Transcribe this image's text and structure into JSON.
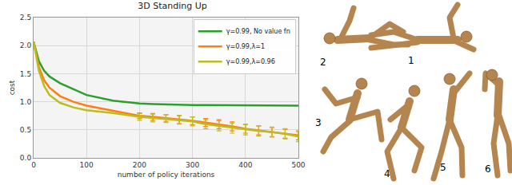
{
  "chart_data": {
    "type": "line",
    "title": "3D Standing Up",
    "x_label": "number of policy iterations",
    "y_label": "cost",
    "x": [
      0,
      10,
      20,
      30,
      50,
      75,
      100,
      150,
      200,
      225,
      250,
      275,
      300,
      325,
      350,
      375,
      400,
      425,
      450,
      475,
      500
    ],
    "series": [
      {
        "name": "γ=0.99, No value fn",
        "color": "#2ca02c",
        "line_style": "solid",
        "values": [
          2.07,
          1.72,
          1.55,
          1.45,
          1.33,
          1.22,
          1.12,
          1.02,
          0.97,
          0.96,
          0.95,
          0.95,
          0.94,
          0.94,
          0.94,
          0.93,
          0.93,
          0.93,
          0.93,
          0.93,
          0.93
        ]
      },
      {
        "name": "γ=0.99,λ=1",
        "color": "#ff7f0e",
        "line_style": "solid",
        "values": [
          2.07,
          1.62,
          1.38,
          1.25,
          1.1,
          1.0,
          0.93,
          0.84,
          0.75,
          0.73,
          0.71,
          0.68,
          0.66,
          0.63,
          0.6,
          0.56,
          0.52,
          0.49,
          0.46,
          0.43,
          0.4
        ],
        "error": [
          null,
          null,
          null,
          null,
          null,
          null,
          null,
          null,
          0.05,
          0.06,
          0.06,
          0.07,
          0.07,
          0.07,
          0.08,
          0.08,
          0.08,
          0.08,
          0.08,
          0.08,
          0.08
        ]
      },
      {
        "name": "γ=0.99,λ=0.96",
        "color": "#bcbd22",
        "line_style": "solid",
        "values": [
          2.07,
          1.55,
          1.28,
          1.12,
          0.98,
          0.9,
          0.85,
          0.8,
          0.73,
          0.71,
          0.7,
          0.68,
          0.65,
          0.6,
          0.57,
          0.53,
          0.5,
          0.48,
          0.46,
          0.43,
          0.38
        ],
        "error": [
          null,
          null,
          null,
          null,
          null,
          null,
          null,
          null,
          0.06,
          0.07,
          0.07,
          0.08,
          0.08,
          0.08,
          0.09,
          0.09,
          0.09,
          0.09,
          0.09,
          0.09,
          0.09
        ]
      }
    ],
    "xlim": [
      0,
      500
    ],
    "xticks": [
      0,
      100,
      200,
      300,
      400,
      500
    ],
    "ylim": [
      0,
      2.5
    ],
    "yticks": [
      {
        "value": 0,
        "label": "0.0"
      },
      0.5,
      {
        "value": 1,
        "label": "1.0"
      },
      1.5,
      {
        "value": 2,
        "label": "2.0"
      },
      2.5
    ],
    "grid": true,
    "legend": "top-right"
  },
  "illustration": {
    "labels": [
      "1",
      "2",
      "3",
      "4",
      "5",
      "6"
    ]
  }
}
